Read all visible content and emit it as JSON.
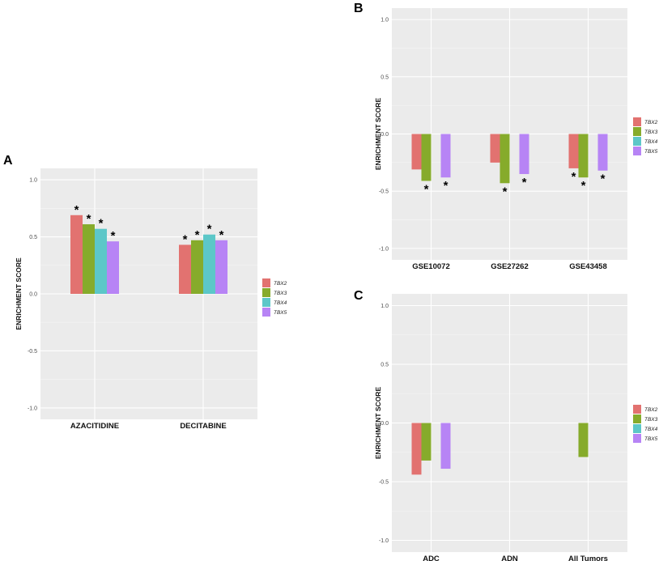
{
  "colors": {
    "TBX2": "#e27270",
    "TBX3": "#86ab2b",
    "TBX4": "#5cc7c8",
    "TBX5": "#b784f5",
    "panel_bg": "#ebebeb",
    "grid": "#ffffff"
  },
  "chart_data": [
    {
      "panel": "A",
      "type": "bar",
      "ylabel": "ENRICHMENT SCORE",
      "ylim": [
        -1.1,
        1.1
      ],
      "yticks": [
        "-1.0",
        "-0.5",
        "0.0",
        "0.5",
        "1.0"
      ],
      "categories": [
        "AZACITIDINE",
        "DECITABINE"
      ],
      "legend": [
        "TBX2",
        "TBX3",
        "TBX4",
        "TBX5"
      ],
      "series": [
        {
          "name": "TBX2",
          "values": [
            0.69,
            0.43
          ],
          "sig": [
            true,
            true
          ]
        },
        {
          "name": "TBX3",
          "values": [
            0.61,
            0.47
          ],
          "sig": [
            true,
            true
          ]
        },
        {
          "name": "TBX4",
          "values": [
            0.57,
            0.52
          ],
          "sig": [
            true,
            true
          ]
        },
        {
          "name": "TBX5",
          "values": [
            0.46,
            0.47
          ],
          "sig": [
            true,
            true
          ]
        }
      ],
      "annotation": "*"
    },
    {
      "panel": "B",
      "type": "bar",
      "ylabel": "ENRICHMENT SCORE",
      "ylim": [
        -1.1,
        1.1
      ],
      "yticks": [
        "-1.0",
        "-0.5",
        "0.0",
        "0.5",
        "1.0"
      ],
      "categories": [
        "GSE10072",
        "GSE27262",
        "GSE43458"
      ],
      "legend": [
        "TBX2",
        "TBX3",
        "TBX4",
        "TBX5"
      ],
      "series": [
        {
          "name": "TBX2",
          "values": [
            -0.31,
            -0.25,
            -0.3
          ],
          "sig": [
            false,
            false,
            true
          ]
        },
        {
          "name": "TBX3",
          "values": [
            -0.41,
            -0.43,
            -0.38
          ],
          "sig": [
            true,
            true,
            true
          ]
        },
        {
          "name": "TBX4",
          "values": [
            null,
            null,
            null
          ],
          "sig": [
            false,
            false,
            false
          ]
        },
        {
          "name": "TBX5",
          "values": [
            -0.38,
            -0.35,
            -0.32
          ],
          "sig": [
            true,
            true,
            true
          ]
        }
      ],
      "annotation": "*"
    },
    {
      "panel": "C",
      "type": "bar",
      "ylabel": "ENRICHMENT SCORE",
      "ylim": [
        -1.1,
        1.1
      ],
      "yticks": [
        "-1.0",
        "-0.5",
        "0.0",
        "0.5",
        "1.0"
      ],
      "categories": [
        "ADC",
        "ADN",
        "All Tumors"
      ],
      "legend": [
        "TBX2",
        "TBX3",
        "TBX4",
        "TBX5"
      ],
      "series": [
        {
          "name": "TBX2",
          "values": [
            -0.44,
            null,
            null
          ],
          "sig": [
            false,
            false,
            false
          ]
        },
        {
          "name": "TBX3",
          "values": [
            -0.32,
            null,
            -0.29
          ],
          "sig": [
            false,
            false,
            false
          ]
        },
        {
          "name": "TBX4",
          "values": [
            null,
            null,
            null
          ],
          "sig": [
            false,
            false,
            false
          ]
        },
        {
          "name": "TBX5",
          "values": [
            -0.39,
            null,
            null
          ],
          "sig": [
            false,
            false,
            false
          ]
        }
      ],
      "annotation": "*"
    }
  ]
}
